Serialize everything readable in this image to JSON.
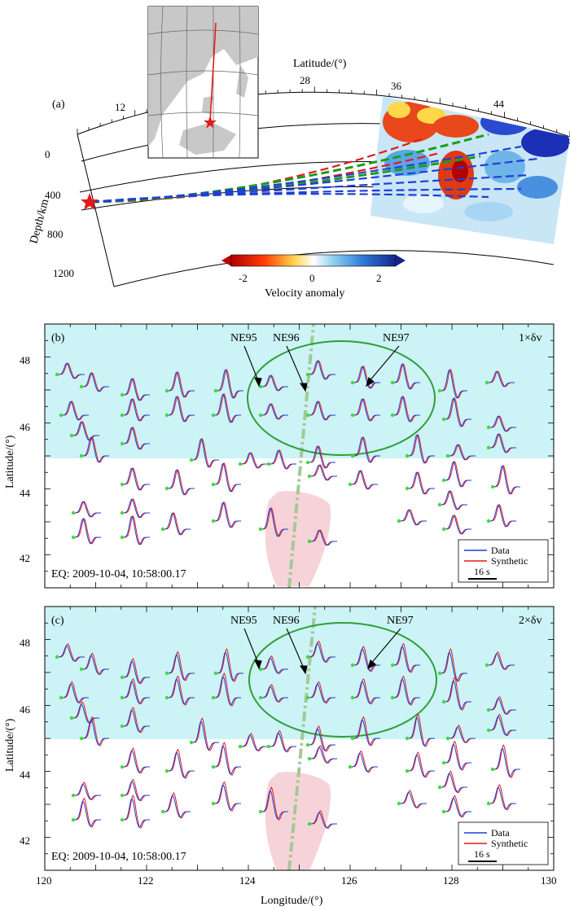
{
  "figure": {
    "panel_a": {
      "label": "(a)",
      "latitude_label": "Latitude/(°)",
      "depth_label": "Depth/km",
      "lat_ticks": [
        "12",
        "28",
        "36",
        "44"
      ],
      "depth_ticks": [
        "0",
        "400",
        "800",
        "1200"
      ],
      "colorbar_label": "Velocity anomaly",
      "colorbar_ticks": [
        "-2",
        "0",
        "2"
      ],
      "colors": {
        "slow": "#d71f1f",
        "neutral": "#ffffff",
        "fast": "#1c2fb7",
        "ray_red": "#e31a1c",
        "ray_green": "#1a9e1a",
        "ray_blue": "#1f3fd6"
      }
    },
    "panel_b": {
      "label": "(b)",
      "scale": "1×δv",
      "stations": [
        "NE95",
        "NE96",
        "NE97"
      ],
      "eq": "EQ: 2009-10-04, 10:58:00.17",
      "legend_data": "Data",
      "legend_synth": "Synthetic",
      "time_bar": "16 s"
    },
    "panel_c": {
      "label": "(c)",
      "scale": "2×δv",
      "stations": [
        "NE95",
        "NE96",
        "NE97"
      ],
      "eq": "EQ: 2009-10-04, 10:58:00.17",
      "legend_data": "Data",
      "legend_synth": "Synthetic",
      "time_bar": "16 s"
    },
    "axes": {
      "ylabel": "Latitude/(°)",
      "xlabel": "Longitude/(°)",
      "lat_ticks": [
        "42",
        "44",
        "46",
        "48"
      ],
      "lon_ticks": [
        "120",
        "122",
        "124",
        "126",
        "128",
        "130"
      ]
    }
  }
}
